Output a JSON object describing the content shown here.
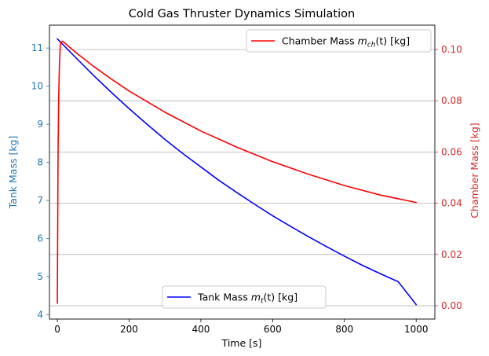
{
  "chart_data": {
    "type": "line",
    "title": "Cold Gas Thruster Dynamics Simulation",
    "xlabel": "Time [s]",
    "xlim": [
      -22,
      1052
    ],
    "x_ticks": [
      0,
      200,
      400,
      600,
      800,
      1000
    ],
    "y_left": {
      "label": "Tank Mass [kg]",
      "color": "#1f77b4",
      "lim": [
        3.89,
        11.6
      ],
      "ticks": [
        4,
        5,
        6,
        7,
        8,
        9,
        10,
        11
      ]
    },
    "y_right": {
      "label": "Chamber Mass [kg]",
      "color": "#d62728",
      "lim": [
        -0.0052,
        0.1095
      ],
      "ticks": [
        0.0,
        0.02,
        0.04,
        0.06,
        0.08,
        0.1
      ],
      "tick_labels": [
        "0.00",
        "0.02",
        "0.04",
        "0.06",
        "0.08",
        "0.10"
      ]
    },
    "grid_axis": "right-y",
    "series": [
      {
        "name": "Tank Mass",
        "legend_label": "Tank Mass m_t(t) [kg]",
        "legend_main": "Tank Mass ",
        "legend_sym": "m",
        "legend_sub": "t",
        "legend_tail": "(t) [kg]",
        "legend_position": "lower-center",
        "axis": "left",
        "color": "#0000ff",
        "x": [
          0,
          50,
          100,
          150,
          200,
          250,
          300,
          350,
          400,
          450,
          500,
          550,
          600,
          650,
          700,
          750,
          800,
          850,
          900,
          950,
          1000
        ],
        "values": [
          11.24,
          10.76,
          10.29,
          9.84,
          9.41,
          9.0,
          8.6,
          8.23,
          7.88,
          7.53,
          7.21,
          6.9,
          6.6,
          6.32,
          6.05,
          5.79,
          5.54,
          5.3,
          5.08,
          4.87,
          4.27
        ]
      },
      {
        "name": "Chamber Mass",
        "legend_label": "Chamber Mass m_ch(t) [kg]",
        "legend_main": "Chamber Mass ",
        "legend_sym": "m",
        "legend_sub": "ch",
        "legend_tail": "(t) [kg]",
        "legend_position": "top-right",
        "axis": "right",
        "color": "#ff0000",
        "x": [
          0,
          2,
          4,
          6,
          8,
          10,
          15,
          50,
          100,
          150,
          200,
          300,
          400,
          500,
          600,
          700,
          800,
          900,
          1000
        ],
        "values": [
          0.001,
          0.06,
          0.083,
          0.095,
          0.101,
          0.103,
          0.1032,
          0.099,
          0.0935,
          0.0885,
          0.0838,
          0.0755,
          0.0682,
          0.0619,
          0.0562,
          0.0513,
          0.0469,
          0.0432,
          0.0403
        ]
      }
    ]
  }
}
